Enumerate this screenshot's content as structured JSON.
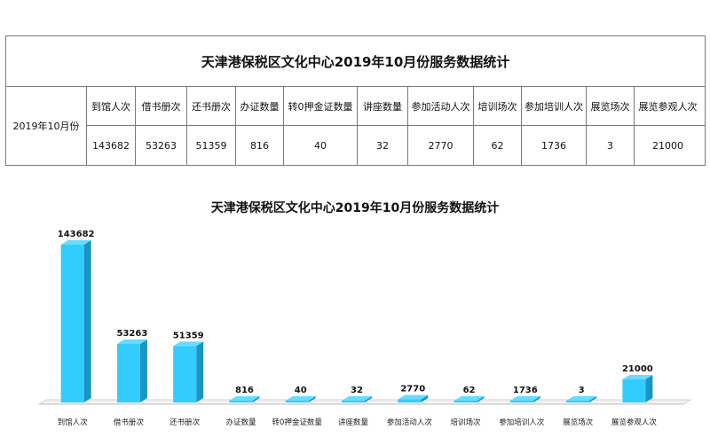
{
  "table": {
    "title": "天津港保税区文化中心2019年10月份服务数据统计",
    "row_label": "2019年10月份",
    "headers": [
      "到馆人次",
      "借书册次",
      "还书册次",
      "办证数量",
      "转0押金证数量",
      "讲座数量",
      "参加活动人次",
      "培训场次",
      "参加培训人次",
      "展览场次",
      "展览参观人次"
    ],
    "values": [
      "143682",
      "53263",
      "51359",
      "816",
      "40",
      "32",
      "2770",
      "62",
      "1736",
      "3",
      "21000"
    ]
  },
  "chart_data": {
    "type": "bar",
    "title": "天津港保税区文化中心2019年10月份服务数据统计",
    "categories": [
      "到馆人次",
      "借书册次",
      "还书册次",
      "办证数量",
      "转0押金证数量",
      "讲座数量",
      "参加活动人次",
      "培训场次",
      "参加培训人次",
      "展览场次",
      "展览参观人次"
    ],
    "values": [
      143682,
      53263,
      51359,
      816,
      40,
      32,
      2770,
      62,
      1736,
      3,
      21000
    ],
    "xlabel": "",
    "ylabel": "",
    "ylim": [
      0,
      143682
    ],
    "grid": false,
    "legend": "none",
    "bar_color_front": "#33ccff",
    "bar_color_side": "#1a94c2",
    "bar_color_top": "#66dcff"
  }
}
